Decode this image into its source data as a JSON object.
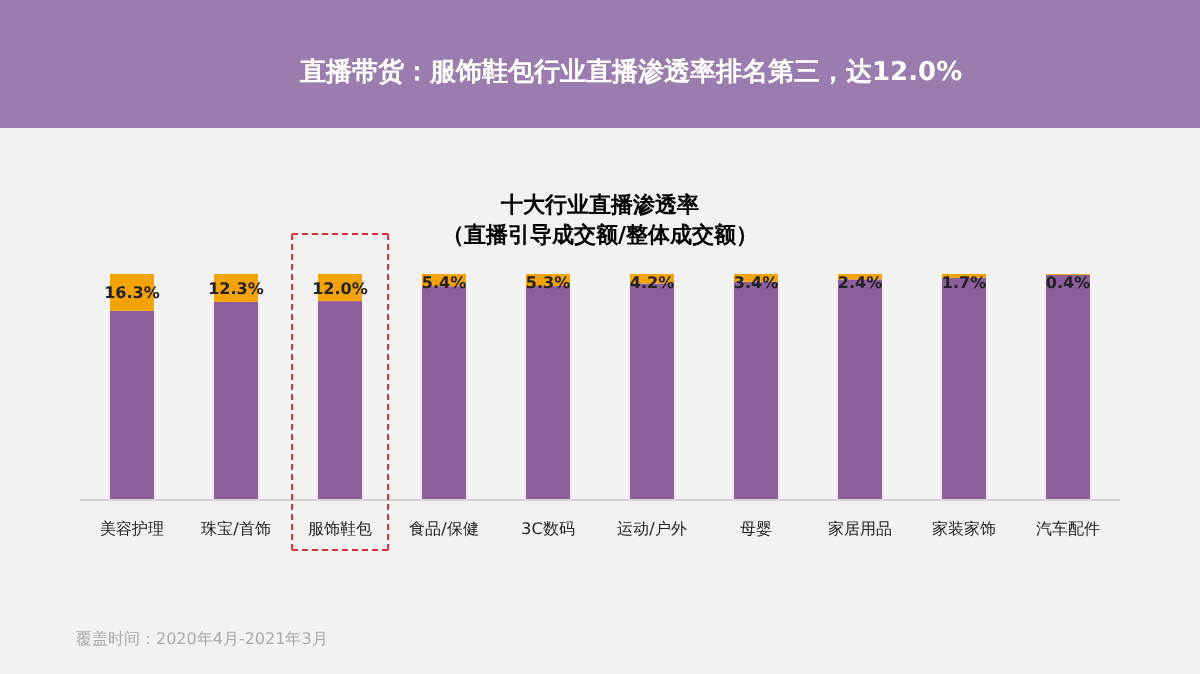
{
  "chart_data": {
    "type": "bar",
    "stacked": true,
    "ylim": [
      0,
      100
    ],
    "title": "十大行业直播渗透率",
    "subtitle": "（直播引导成交额/整体成交额）",
    "categories": [
      "美容护理",
      "珠宝/首饰",
      "服饰鞋包",
      "食品/保健",
      "3C数码",
      "运动/户外",
      "母婴",
      "家居用品",
      "家装家饰",
      "汽车配件"
    ],
    "series": [
      {
        "color": "#8c5f9c",
        "values": [
          83.7,
          87.7,
          88.0,
          94.6,
          94.7,
          95.8,
          96.6,
          97.6,
          98.3,
          99.6
        ]
      },
      {
        "color": "#f5a300",
        "values": [
          16.3,
          12.3,
          12.0,
          5.4,
          5.3,
          4.2,
          3.4,
          2.4,
          1.7,
          0.4
        ],
        "value_labels": [
          "16.3%",
          "12.3%",
          "12.0%",
          "5.4%",
          "5.3%",
          "4.2%",
          "3.4%",
          "2.4%",
          "1.7%",
          "0.4%"
        ]
      }
    ],
    "annotations": [
      "直播带货：服饰鞋包行业直播渗透率排名第三，达12.0%",
      "覆盖时间：2020年4月-2021年3月"
    ]
  }
}
